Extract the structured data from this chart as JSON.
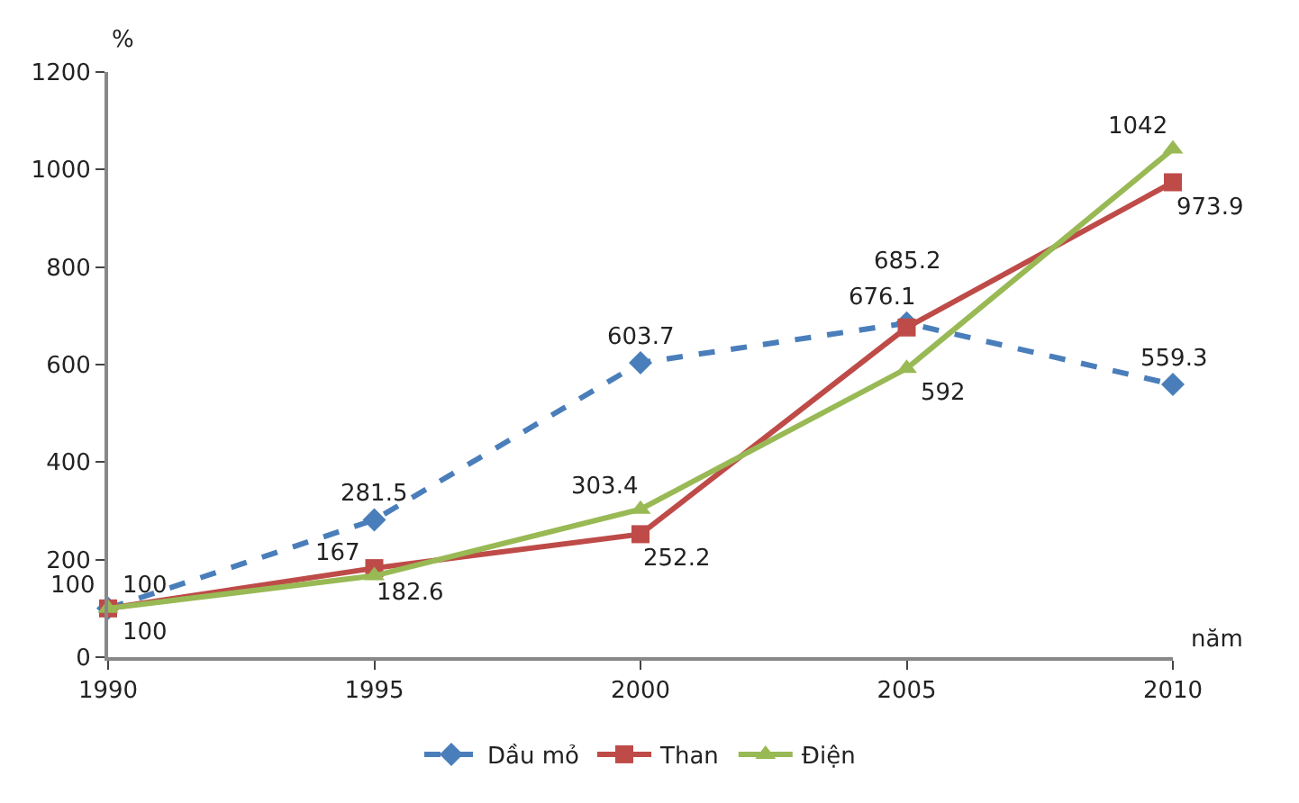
{
  "chart_data": {
    "type": "line",
    "ylabel": "%",
    "xlabel": "năm",
    "x": [
      1990,
      1995,
      2000,
      2005,
      2010
    ],
    "series": [
      {
        "name": "Dầu mỏ",
        "color": "#4a7ebb",
        "marker": "diamond",
        "line_style": "dashed",
        "values": [
          100,
          281.5,
          603.7,
          685.2,
          559.3
        ]
      },
      {
        "name": "Than",
        "color": "#be4b48",
        "marker": "square",
        "line_style": "solid",
        "values": [
          100,
          182.6,
          252.2,
          676.1,
          973.9
        ]
      },
      {
        "name": "Điện",
        "color": "#98b954",
        "marker": "triangle",
        "line_style": "solid",
        "values": [
          100,
          167,
          303.4,
          592,
          1042
        ]
      }
    ],
    "data_labels": true,
    "xlim": [
      1990,
      2010
    ],
    "xticks": [
      1990,
      1995,
      2000,
      2005,
      2010
    ],
    "ylim": [
      0,
      1200
    ],
    "yticks": [
      0,
      200,
      400,
      600,
      800,
      1000,
      1200
    ],
    "legend": "bottom"
  }
}
